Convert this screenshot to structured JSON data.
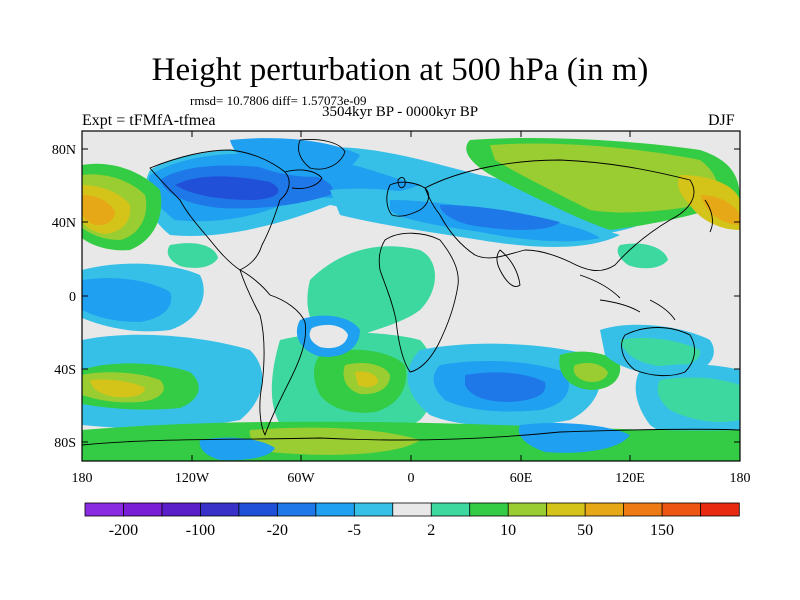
{
  "title": "Height perturbation at 500 hPa (in m)",
  "stats": "rmsd= 10.7806 diff= 1.57073e-09",
  "period": "3504kyr BP - 0000kyr BP",
  "expt": "Expt = tFMfA-tfmea",
  "season": "DJF",
  "y_ticks": [
    "80N",
    "40N",
    "0",
    "40S",
    "80S"
  ],
  "x_ticks": [
    "180",
    "120W",
    "60W",
    "0",
    "60E",
    "120E",
    "180"
  ],
  "colorbar": {
    "colors": [
      "#8a2be2",
      "#7a1fd6",
      "#5a1fc8",
      "#3a32c8",
      "#2050d8",
      "#1e78e8",
      "#1fa0f0",
      "#36c0e8",
      "#e8e8e8",
      "#3cd8a0",
      "#33cc44",
      "#9acd32",
      "#d4c41a",
      "#e6a817",
      "#ee7a14",
      "#ec5512",
      "#e82a10"
    ],
    "labels": [
      "-200",
      "-100",
      "-20",
      "-5",
      "2",
      "10",
      "50",
      "150"
    ]
  },
  "map_palette": {
    "background": "#e8e8e8",
    "blue_dark": "#2050d8",
    "blue_mid": "#1e78e8",
    "blue_light": "#1fa0f0",
    "cyan": "#36c0e8",
    "green_light": "#3cd8a0",
    "green": "#33cc44",
    "yellow_green": "#9acd32",
    "yellow": "#d4c41a",
    "orange": "#e6a817",
    "coast": "#000000"
  }
}
